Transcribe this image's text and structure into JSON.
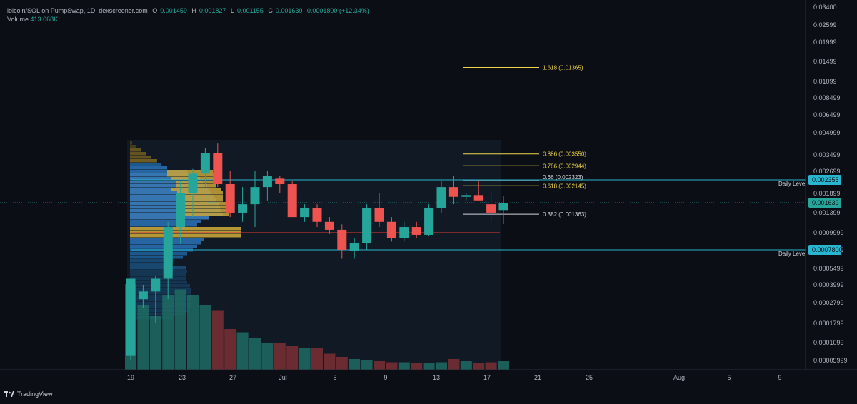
{
  "header": {
    "title": "lolcoin/SOL on PumpSwap, 1D, dexscreener.com",
    "open_label": "O",
    "open": "0.001459",
    "high_label": "H",
    "high": "0.001827",
    "low_label": "L",
    "low": "0.001155",
    "close_label": "C",
    "close": "0.001639",
    "change": "0.0001800 (+12.34%)",
    "volume_label": "Volume",
    "volume": "413.068K"
  },
  "brand": {
    "label": "TradingView",
    "icon": "tradingview-logo-icon"
  },
  "colors": {
    "up": "#26a69a",
    "down": "#ef5350",
    "fib": "#f0d54a",
    "level": "#28b5d0",
    "background": "#0b0e14",
    "support": "#e53935"
  },
  "price_axis_labels": [
    "0.03400",
    "0.02599",
    "0.01999",
    "0.01499",
    "0.01099",
    "0.008499",
    "0.006499",
    "0.004999",
    "0.003499",
    "0.002699",
    "0.001899",
    "0.001399",
    "0.0009999",
    "0.0007799",
    "0.0005499",
    "0.0003999",
    "0.0002799",
    "0.0001799",
    "0.0001099",
    "0.00005999"
  ],
  "time_axis_labels": [
    "19",
    "23",
    "27",
    "Jul",
    "5",
    "9",
    "13",
    "17",
    "21",
    "25",
    "Aug",
    "5",
    "9"
  ],
  "price_badges": [
    {
      "label": "0.002355",
      "style": "level"
    },
    {
      "label": "0.001639",
      "style": "current"
    },
    {
      "label": "0.0007800",
      "style": "level"
    }
  ],
  "daily_level_label": "Daily Level",
  "fib_levels": [
    {
      "label": "1.618 (0.01365)",
      "price": 0.01365,
      "color": "fib"
    },
    {
      "label": "0.886 (0.003550)",
      "price": 0.00355,
      "color": "fib"
    },
    {
      "label": "0.786 (0.002944)",
      "price": 0.002944,
      "color": "fib"
    },
    {
      "label": "0.66 (0.002323)",
      "price": 0.002323,
      "color": "white"
    },
    {
      "label": "0.618 (0.002145)",
      "price": 0.002145,
      "color": "fib"
    },
    {
      "label": "0.382 (0.001363)",
      "price": 0.001363,
      "color": "white"
    }
  ],
  "chart_data": {
    "type": "candlestick",
    "x_axis": "date (daily)",
    "y_scale": "log",
    "ylim": [
      5e-05,
      0.035
    ],
    "horizontal_levels": [
      {
        "name": "Daily Level",
        "price": 0.002355
      },
      {
        "name": "Daily Level",
        "price": 0.00078
      },
      {
        "price": 0.001,
        "color": "support"
      }
    ],
    "candles": [
      {
        "date": "06-19",
        "o": 7e-05,
        "h": 0.00045,
        "l": 6e-05,
        "c": 0.00045
      },
      {
        "date": "06-20",
        "o": 0.0003,
        "h": 0.0004,
        "l": 0.00025,
        "c": 0.00035
      },
      {
        "date": "06-21",
        "o": 0.00035,
        "h": 0.00048,
        "l": 0.00018,
        "c": 0.00045
      },
      {
        "date": "06-22",
        "o": 0.00045,
        "h": 0.0012,
        "l": 0.0003,
        "c": 0.0011
      },
      {
        "date": "06-23",
        "o": 0.0011,
        "h": 0.0023,
        "l": 0.00085,
        "c": 0.0019
      },
      {
        "date": "06-24",
        "o": 0.0019,
        "h": 0.0028,
        "l": 0.0013,
        "c": 0.0026
      },
      {
        "date": "06-25",
        "o": 0.0026,
        "h": 0.0039,
        "l": 0.0021,
        "c": 0.0036
      },
      {
        "date": "06-26",
        "o": 0.0036,
        "h": 0.0042,
        "l": 0.0021,
        "c": 0.0022
      },
      {
        "date": "06-27",
        "o": 0.0022,
        "h": 0.0027,
        "l": 0.0013,
        "c": 0.0014
      },
      {
        "date": "06-28",
        "o": 0.0014,
        "h": 0.0021,
        "l": 0.0012,
        "c": 0.0016
      },
      {
        "date": "06-29",
        "o": 0.0016,
        "h": 0.0027,
        "l": 0.0011,
        "c": 0.0021
      },
      {
        "date": "06-30",
        "o": 0.0021,
        "h": 0.0027,
        "l": 0.0017,
        "c": 0.0025
      },
      {
        "date": "07-01",
        "o": 0.0024,
        "h": 0.0025,
        "l": 0.0019,
        "c": 0.0022
      },
      {
        "date": "07-02",
        "o": 0.0022,
        "h": 0.0023,
        "l": 0.0013,
        "c": 0.0013
      },
      {
        "date": "07-03",
        "o": 0.0013,
        "h": 0.0016,
        "l": 0.0012,
        "c": 0.0015
      },
      {
        "date": "07-04",
        "o": 0.0015,
        "h": 0.0016,
        "l": 0.0011,
        "c": 0.0012
      },
      {
        "date": "07-05",
        "o": 0.0012,
        "h": 0.0013,
        "l": 0.00098,
        "c": 0.00105
      },
      {
        "date": "07-06",
        "o": 0.00105,
        "h": 0.00115,
        "l": 0.00066,
        "c": 0.00078
      },
      {
        "date": "07-07",
        "o": 0.00076,
        "h": 0.00092,
        "l": 0.00066,
        "c": 0.00086
      },
      {
        "date": "07-08",
        "o": 0.00086,
        "h": 0.0016,
        "l": 0.00078,
        "c": 0.0015
      },
      {
        "date": "07-09",
        "o": 0.0015,
        "h": 0.0019,
        "l": 0.0011,
        "c": 0.0012
      },
      {
        "date": "07-10",
        "o": 0.0012,
        "h": 0.0013,
        "l": 0.00088,
        "c": 0.00093
      },
      {
        "date": "07-11",
        "o": 0.00093,
        "h": 0.0012,
        "l": 0.00088,
        "c": 0.0011
      },
      {
        "date": "07-12",
        "o": 0.0011,
        "h": 0.0012,
        "l": 0.00093,
        "c": 0.00097
      },
      {
        "date": "07-13",
        "o": 0.00097,
        "h": 0.0016,
        "l": 0.00095,
        "c": 0.0015
      },
      {
        "date": "07-14",
        "o": 0.0015,
        "h": 0.0023,
        "l": 0.0014,
        "c": 0.0021
      },
      {
        "date": "07-15",
        "o": 0.0021,
        "h": 0.0025,
        "l": 0.0016,
        "c": 0.0018
      },
      {
        "date": "07-16",
        "o": 0.0018,
        "h": 0.0019,
        "l": 0.0017,
        "c": 0.00185
      },
      {
        "date": "07-17",
        "o": 0.00185,
        "h": 0.0023,
        "l": 0.0017,
        "c": 0.0017
      },
      {
        "date": "07-18",
        "o": 0.0016,
        "h": 0.0019,
        "l": 0.0012,
        "c": 0.0014
      },
      {
        "date": "07-19",
        "o": 0.001459,
        "h": 0.001827,
        "l": 0.001155,
        "c": 0.001639
      }
    ],
    "volume_series": [
      0.8,
      0.6,
      0.5,
      0.7,
      0.75,
      0.7,
      0.6,
      0.55,
      0.38,
      0.35,
      0.3,
      0.25,
      0.25,
      0.22,
      0.2,
      0.2,
      0.15,
      0.12,
      0.1,
      0.09,
      0.08,
      0.07,
      0.07,
      0.06,
      0.06,
      0.07,
      0.1,
      0.08,
      0.06,
      0.07,
      0.08
    ]
  }
}
